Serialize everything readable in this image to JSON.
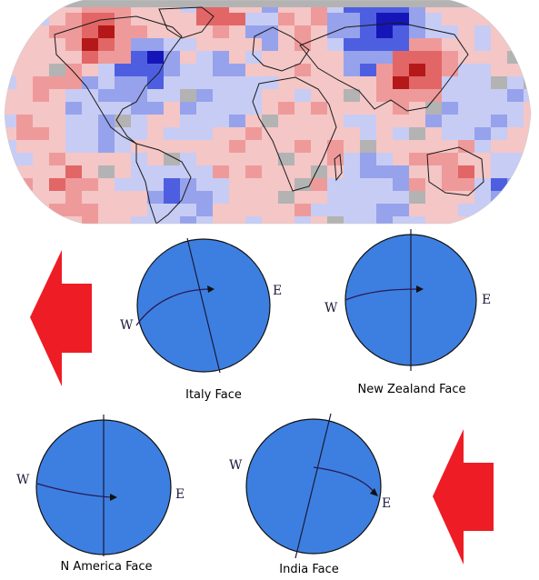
{
  "palette": {
    "land_outline": "#1a1a1a",
    "missing": "#b3b3b3",
    "warm_1": "#f4c6c6",
    "warm_2": "#ef9a9a",
    "warm_3": "#e26666",
    "warm_4": "#b41818",
    "cool_1": "#c7ccf4",
    "cool_2": "#97a2ec",
    "cool_3": "#4d5fe0",
    "cool_4": "#1616b8",
    "globe_fill": "#3d7fe0",
    "globe_stroke": "#111111",
    "arrow": "#ee1c25",
    "path_line": "#2a1a55"
  },
  "faces": {
    "italy": {
      "label": "Italy Face",
      "west": "W",
      "east": "E"
    },
    "new_zealand": {
      "label": "New Zealand Face",
      "west": "W",
      "east": "E"
    },
    "north_america": {
      "label": "N America Face",
      "west": "W",
      "east": "E"
    },
    "india": {
      "label": "India Face",
      "west": "W",
      "east": "E"
    }
  },
  "map": {
    "icon": "world-temperature-anomaly-map"
  }
}
